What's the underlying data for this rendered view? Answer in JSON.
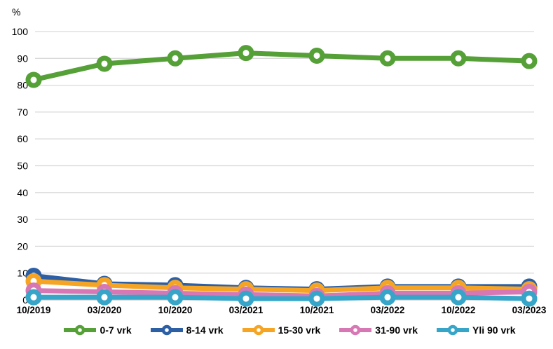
{
  "chart": {
    "unit_label": "%",
    "background_color": "#ffffff",
    "gridline_color": "#d9d9d9",
    "zero_line_color": "#c6c6c6",
    "axis_text_color": "#000000"
  },
  "chart_data": {
    "type": "line",
    "title": "",
    "xlabel": "",
    "ylabel": "%",
    "ylim": [
      0,
      100
    ],
    "ytick_step": 10,
    "grid": "horizontal",
    "legend_position": "bottom",
    "marker_style": "open-circle",
    "categories": [
      "10/2019",
      "03/2020",
      "10/2020",
      "03/2021",
      "10/2021",
      "03/2022",
      "10/2022",
      "03/2023"
    ],
    "series": [
      {
        "name": "0-7 vrk",
        "color": "#55a037",
        "values": [
          82,
          88,
          90,
          92,
          91,
          90,
          90,
          89
        ]
      },
      {
        "name": "8-14 vrk",
        "color": "#2d5fa5",
        "values": [
          9,
          6,
          5.5,
          4.5,
          4,
          5,
          5,
          5
        ]
      },
      {
        "name": "15-30 vrk",
        "color": "#f5a523",
        "values": [
          7,
          5.5,
          4.5,
          4,
          3.5,
          4.5,
          4.5,
          4
        ]
      },
      {
        "name": "31-90 vrk",
        "color": "#d778b4",
        "values": [
          3.5,
          3,
          2.5,
          2,
          1.5,
          2.5,
          2.5,
          3
        ]
      },
      {
        "name": "Yli 90 vrk",
        "color": "#37a5c8",
        "values": [
          1,
          1,
          1,
          0.5,
          0.5,
          1,
          1,
          0.5
        ]
      }
    ]
  }
}
